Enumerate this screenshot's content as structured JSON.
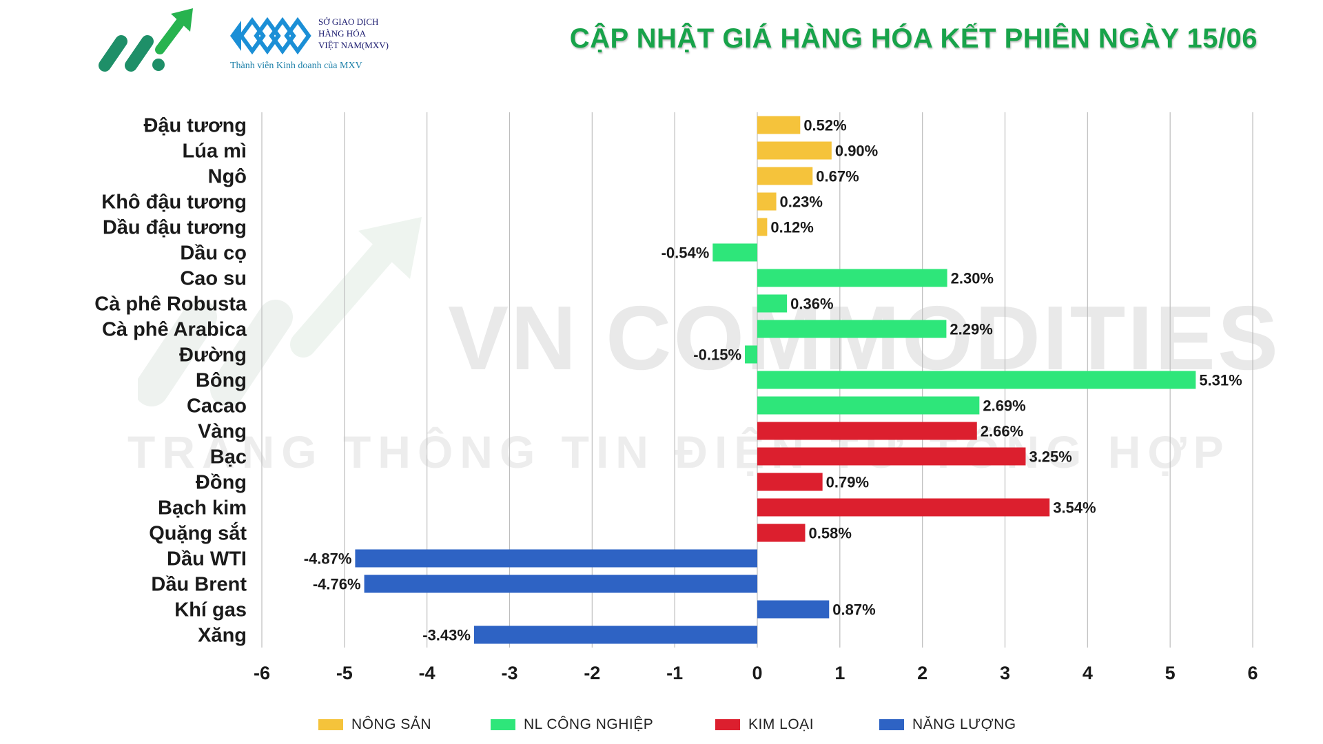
{
  "header": {
    "title": "CẬP NHẬT GIÁ HÀNG HÓA KẾT PHIÊN NGÀY 15/06",
    "mxv_lines": [
      "SỞ GIAO DỊCH",
      "HÀNG HÓA",
      "VIỆT NAM(MXV)"
    ],
    "mxv_tagline": "Thành viên Kinh doanh của MXV",
    "logo_icon": "growth-arrow-icon",
    "mxv_logo_icon": "mxv-diamond-logo-icon"
  },
  "watermark": {
    "main": "VN COMMODITIES",
    "sub": "TRANG THÔNG TIN ĐIỆN TỬ TỔNG HỢP"
  },
  "colors": {
    "title": "#18a34a",
    "nong_san": "#f5c33b",
    "nl_cong_nghiep": "#2ee67a",
    "kim_loai": "#dc1f2e",
    "nang_luong": "#2e63c4",
    "grid": "#bdbdbd"
  },
  "chart_data": {
    "type": "bar",
    "orientation": "horizontal",
    "categories": [
      "Đậu tương",
      "Lúa mì",
      "Ngô",
      "Khô đậu tương",
      "Dầu đậu tương",
      "Dầu cọ",
      "Cao su",
      "Cà phê Robusta",
      "Cà phê Arabica",
      "Đường",
      "Bông",
      "Cacao",
      "Vàng",
      "Bạc",
      "Đồng",
      "Bạch kim",
      "Quặng sắt",
      "Dầu WTI",
      "Dầu Brent",
      "Khí gas",
      "Xăng"
    ],
    "values": [
      0.52,
      0.9,
      0.67,
      0.23,
      0.12,
      -0.54,
      2.3,
      0.36,
      2.29,
      -0.15,
      5.31,
      2.69,
      2.66,
      3.25,
      0.79,
      3.54,
      0.58,
      -4.87,
      -4.76,
      0.87,
      -3.43
    ],
    "value_labels": [
      "0.52%",
      "0.90%",
      "0.67%",
      "0.23%",
      "0.12%",
      "-0.54%",
      "2.30%",
      "0.36%",
      "2.29%",
      "-0.15%",
      "5.31%",
      "2.69%",
      "2.66%",
      "3.25%",
      "0.79%",
      "3.54%",
      "0.58%",
      "-4.87%",
      "-4.76%",
      "0.87%",
      "-3.43%"
    ],
    "groups": [
      "nong_san",
      "nong_san",
      "nong_san",
      "nong_san",
      "nong_san",
      "nl_cong_nghiep",
      "nl_cong_nghiep",
      "nl_cong_nghiep",
      "nl_cong_nghiep",
      "nl_cong_nghiep",
      "nl_cong_nghiep",
      "nl_cong_nghiep",
      "kim_loai",
      "kim_loai",
      "kim_loai",
      "kim_loai",
      "kim_loai",
      "nang_luong",
      "nang_luong",
      "nang_luong",
      "nang_luong"
    ],
    "legend": [
      {
        "key": "nong_san",
        "label": "NÔNG SẢN"
      },
      {
        "key": "nl_cong_nghiep",
        "label": "NL CÔNG NGHIỆP"
      },
      {
        "key": "kim_loai",
        "label": "KIM LOẠI"
      },
      {
        "key": "nang_luong",
        "label": "NĂNG LƯỢNG"
      }
    ],
    "xlim": [
      -6,
      6
    ],
    "xticks": [
      -6,
      -5,
      -4,
      -3,
      -2,
      -1,
      0,
      1,
      2,
      3,
      4,
      5,
      6
    ],
    "xtick_labels": [
      "-6",
      "-5",
      "-4",
      "-3",
      "-2",
      "-1",
      "0",
      "1",
      "2",
      "3",
      "4",
      "5",
      "6"
    ],
    "grid": "vertical",
    "legend_position": "bottom"
  }
}
